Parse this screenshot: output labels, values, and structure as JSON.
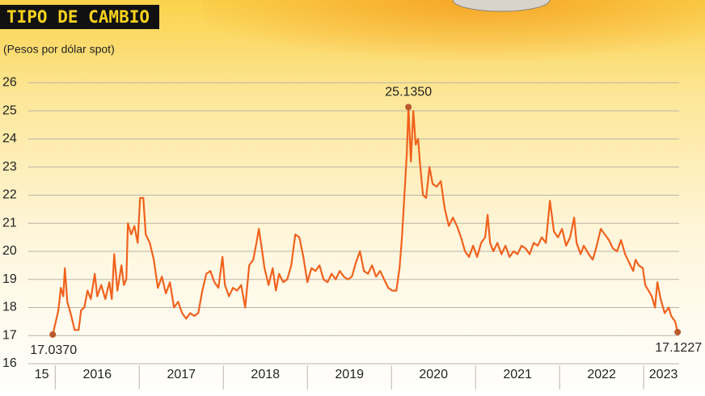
{
  "chart_data": {
    "type": "line",
    "title": "TIPO DE CAMBIO",
    "subtitle": "(Pesos por dólar spot)",
    "categories": [
      "15",
      "2016",
      "2017",
      "2018",
      "2019",
      "2020",
      "2021",
      "2022",
      "2023"
    ],
    "xlim": [
      2015.68,
      2023.47
    ],
    "xticks": [
      2016,
      2017,
      2018,
      2019,
      2020,
      2021,
      2022,
      2023
    ],
    "ylim": [
      16,
      26.3
    ],
    "yticks": [
      16,
      17,
      18,
      19,
      20,
      21,
      22,
      23,
      24,
      25,
      26
    ],
    "grid": true,
    "x": [
      2015.971,
      2016.038,
      2016.067,
      2016.096,
      2016.115,
      2016.144,
      2016.183,
      2016.231,
      2016.279,
      2016.308,
      2016.346,
      2016.385,
      2016.423,
      2016.471,
      2016.5,
      2016.548,
      2016.596,
      2016.644,
      2016.673,
      2016.702,
      2016.74,
      2016.788,
      2016.817,
      2016.846,
      2016.865,
      2016.904,
      2016.942,
      2016.981,
      2017.01,
      2017.048,
      2017.077,
      2017.125,
      2017.173,
      2017.221,
      2017.269,
      2017.317,
      2017.365,
      2017.413,
      2017.462,
      2017.51,
      2017.558,
      2017.606,
      2017.654,
      2017.702,
      2017.75,
      2017.798,
      2017.846,
      2017.894,
      2017.942,
      2017.99,
      2018.019,
      2018.067,
      2018.115,
      2018.163,
      2018.212,
      2018.26,
      2018.308,
      2018.356,
      2018.394,
      2018.423,
      2018.462,
      2018.49,
      2018.538,
      2018.587,
      2018.625,
      2018.663,
      2018.712,
      2018.76,
      2018.808,
      2018.856,
      2018.904,
      2018.952,
      2019.0,
      2019.048,
      2019.096,
      2019.144,
      2019.192,
      2019.24,
      2019.288,
      2019.337,
      2019.385,
      2019.433,
      2019.481,
      2019.529,
      2019.577,
      2019.625,
      2019.673,
      2019.721,
      2019.769,
      2019.817,
      2019.865,
      2019.913,
      2019.962,
      2020.01,
      2020.058,
      2020.096,
      2020.125,
      2020.154,
      2020.183,
      2020.202,
      2020.231,
      2020.26,
      2020.288,
      2020.317,
      2020.346,
      2020.375,
      2020.413,
      2020.452,
      2020.49,
      2020.538,
      2020.587,
      2020.635,
      2020.683,
      2020.731,
      2020.779,
      2020.827,
      2020.875,
      2020.923,
      2020.971,
      2021.019,
      2021.067,
      2021.115,
      2021.144,
      2021.173,
      2021.212,
      2021.26,
      2021.308,
      2021.356,
      2021.404,
      2021.452,
      2021.5,
      2021.548,
      2021.596,
      2021.644,
      2021.692,
      2021.74,
      2021.788,
      2021.837,
      2021.885,
      2021.933,
      2021.981,
      2022.029,
      2022.077,
      2022.125,
      2022.173,
      2022.202,
      2022.25,
      2022.288,
      2022.346,
      2022.394,
      2022.442,
      2022.49,
      2022.538,
      2022.587,
      2022.635,
      2022.683,
      2022.731,
      2022.779,
      2022.827,
      2022.875,
      2022.904,
      2022.942,
      2022.99,
      2023.019,
      2023.058,
      2023.096,
      2023.135,
      2023.163,
      2023.202,
      2023.25,
      2023.298,
      2023.327,
      2023.375,
      2023.404
    ],
    "series": [
      {
        "color": "#f0621e",
        "values": [
          17.037,
          17.9,
          18.7,
          18.4,
          19.4,
          18.2,
          17.8,
          17.2,
          17.2,
          17.9,
          18.0,
          18.6,
          18.3,
          19.2,
          18.4,
          18.8,
          18.3,
          18.9,
          18.3,
          19.9,
          18.6,
          19.5,
          18.8,
          19.0,
          21.0,
          20.6,
          20.9,
          20.3,
          21.9,
          21.9,
          20.6,
          20.3,
          19.7,
          18.7,
          19.1,
          18.5,
          18.9,
          18.0,
          18.2,
          17.8,
          17.6,
          17.8,
          17.7,
          17.8,
          18.6,
          19.2,
          19.3,
          18.9,
          18.7,
          19.8,
          18.8,
          18.4,
          18.7,
          18.6,
          18.8,
          18.0,
          19.5,
          19.7,
          20.3,
          20.8,
          20.0,
          19.4,
          18.8,
          19.4,
          18.6,
          19.2,
          18.9,
          19.0,
          19.5,
          20.6,
          20.5,
          19.8,
          18.9,
          19.4,
          19.3,
          19.5,
          19.0,
          18.9,
          19.2,
          19.0,
          19.3,
          19.1,
          19.0,
          19.1,
          19.6,
          20.0,
          19.3,
          19.2,
          19.5,
          19.1,
          19.3,
          19.0,
          18.7,
          18.6,
          18.6,
          19.4,
          20.5,
          22.0,
          23.5,
          25.135,
          23.2,
          25.0,
          23.8,
          24.0,
          22.9,
          22.0,
          21.9,
          23.0,
          22.4,
          22.3,
          22.5,
          21.5,
          20.9,
          21.2,
          20.9,
          20.5,
          20.0,
          19.8,
          20.2,
          19.8,
          20.3,
          20.5,
          21.3,
          20.3,
          20.0,
          20.3,
          19.9,
          20.2,
          19.8,
          20.0,
          19.9,
          20.2,
          20.1,
          19.9,
          20.3,
          20.2,
          20.5,
          20.3,
          21.8,
          20.7,
          20.5,
          20.8,
          20.2,
          20.5,
          21.2,
          20.3,
          19.9,
          20.2,
          19.9,
          19.7,
          20.2,
          20.8,
          20.6,
          20.4,
          20.1,
          20.0,
          20.4,
          19.9,
          19.6,
          19.3,
          19.7,
          19.5,
          19.4,
          18.8,
          18.6,
          18.4,
          18.0,
          18.9,
          18.3,
          17.8,
          18.0,
          17.7,
          17.5,
          17.1227
        ],
        "value_labels": [
          "17.0370",
          null,
          null,
          null,
          null,
          null,
          null,
          null,
          null,
          null,
          null,
          null,
          null,
          null,
          null,
          null,
          null,
          null,
          null,
          null,
          null,
          null,
          null,
          null,
          null,
          null,
          null,
          null,
          null,
          null,
          null,
          null,
          null,
          null,
          null,
          null,
          null,
          null,
          null,
          null,
          null,
          null,
          null,
          null,
          null,
          null,
          null,
          null,
          null,
          null,
          null,
          null,
          null,
          null,
          null,
          null,
          null,
          null,
          null,
          null,
          null,
          null,
          null,
          null,
          null,
          null,
          null,
          null,
          null,
          null,
          null,
          null,
          null,
          null,
          null,
          null,
          null,
          null,
          null,
          null,
          null,
          null,
          null,
          null,
          null,
          null,
          null,
          null,
          null,
          null,
          null,
          null,
          null,
          null,
          null,
          null,
          null,
          null,
          null,
          "25.1350",
          null,
          null,
          null,
          null,
          null,
          null,
          null,
          null,
          null,
          null,
          null,
          null,
          null,
          null,
          null,
          null,
          null,
          null,
          null,
          null,
          null,
          null,
          null,
          null,
          null,
          null,
          null,
          null,
          null,
          null,
          null,
          null,
          null,
          null,
          null,
          null,
          null,
          null,
          null,
          null,
          null,
          null,
          null,
          null,
          null,
          null,
          null,
          null,
          null,
          null,
          null,
          null,
          null,
          null,
          null,
          null,
          null,
          null,
          null,
          null,
          null,
          null,
          null,
          null,
          null,
          null,
          null,
          null,
          null,
          null,
          null,
          null,
          null,
          "17.1227"
        ]
      }
    ]
  }
}
